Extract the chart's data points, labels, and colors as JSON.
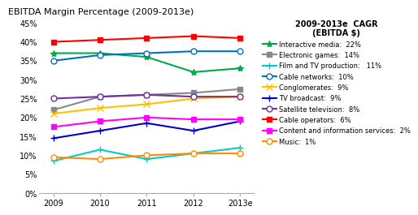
{
  "title": "EBITDA Margin Percentage (2009-2013e)",
  "legend_title": "2009-2013e  CAGR\n(EBITDA $)",
  "years": [
    2009,
    2010,
    2011,
    2012,
    2013
  ],
  "year_labels": [
    "2009",
    "2010",
    "2011",
    "2012",
    "2013e"
  ],
  "series": [
    {
      "name": "Interactive media:  22%",
      "color": "#00aa44",
      "marker": "*",
      "markersize": 6,
      "markerfacecolor": "#00aa44",
      "values": [
        37.0,
        37.0,
        36.0,
        32.0,
        33.0
      ],
      "linestyle": "-",
      "linewidth": 1.5
    },
    {
      "name": "Electronic games:  14%",
      "color": "#888888",
      "marker": "s",
      "markersize": 4,
      "markerfacecolor": "#888888",
      "values": [
        22.0,
        25.5,
        26.0,
        26.5,
        27.5
      ],
      "linestyle": "-",
      "linewidth": 1.5
    },
    {
      "name": "Film and TV production:   11%",
      "color": "#00cccc",
      "marker": "+",
      "markersize": 6,
      "markerfacecolor": "#00cccc",
      "values": [
        8.5,
        11.5,
        9.0,
        10.5,
        12.0
      ],
      "linestyle": "-",
      "linewidth": 1.5
    },
    {
      "name": "Cable networks:  10%",
      "color": "#0070c0",
      "marker": "o",
      "markersize": 5,
      "markerfacecolor": "white",
      "values": [
        35.0,
        36.5,
        37.0,
        37.5,
        37.5
      ],
      "linestyle": "-",
      "linewidth": 1.5
    },
    {
      "name": "Conglomerates:  9%",
      "color": "#ffc000",
      "marker": "x",
      "markersize": 6,
      "markerfacecolor": "#ffc000",
      "values": [
        21.0,
        22.5,
        23.5,
        25.0,
        25.5
      ],
      "linestyle": "-",
      "linewidth": 1.5
    },
    {
      "name": "TV broadcast:  9%",
      "color": "#0000cc",
      "marker": "+",
      "markersize": 6,
      "markerfacecolor": "#0000cc",
      "values": [
        14.5,
        16.5,
        18.5,
        16.5,
        19.0
      ],
      "linestyle": "-",
      "linewidth": 1.5
    },
    {
      "name": "Satellite television:  8%",
      "color": "#7030a0",
      "marker": "o",
      "markersize": 5,
      "markerfacecolor": "white",
      "values": [
        25.0,
        25.5,
        26.0,
        25.5,
        25.5
      ],
      "linestyle": "-",
      "linewidth": 1.5
    },
    {
      "name": "Cable operators:  6%",
      "color": "#ff0000",
      "marker": "s",
      "markersize": 4,
      "markerfacecolor": "#ff0000",
      "values": [
        40.0,
        40.5,
        41.0,
        41.5,
        41.0
      ],
      "linestyle": "-",
      "linewidth": 1.5
    },
    {
      "name": "Content and information services:  2%",
      "color": "#ff00ff",
      "marker": "s",
      "markersize": 4,
      "markerfacecolor": "#ff00ff",
      "values": [
        17.5,
        19.0,
        20.0,
        19.5,
        19.5
      ],
      "linestyle": "-",
      "linewidth": 1.5
    },
    {
      "name": "Music:  1%",
      "color": "#ff8c00",
      "marker": "o",
      "markersize": 5,
      "markerfacecolor": "white",
      "values": [
        9.5,
        9.0,
        10.0,
        10.5,
        10.5
      ],
      "linestyle": "-",
      "linewidth": 1.5
    }
  ],
  "ylim": [
    0,
    45
  ],
  "yticks": [
    0,
    5,
    10,
    15,
    20,
    25,
    30,
    35,
    40,
    45
  ],
  "ytick_labels": [
    "0%",
    "5%",
    "10%",
    "15%",
    "20%",
    "25%",
    "30%",
    "35%",
    "40%",
    "45%"
  ],
  "background_color": "#ffffff",
  "title_fontsize": 8,
  "legend_fontsize": 6,
  "legend_title_fontsize": 7,
  "tick_fontsize": 7
}
